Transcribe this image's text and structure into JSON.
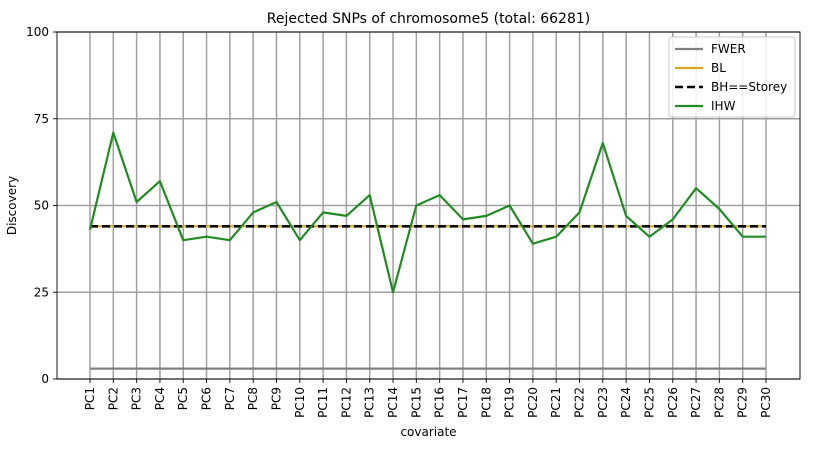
{
  "chart_data": {
    "type": "line",
    "title": "Rejected SNPs of chromosome5 (total: 66281)",
    "xlabel": "covariate",
    "ylabel": "Discovery",
    "categories": [
      "PC1",
      "PC2",
      "PC3",
      "PC4",
      "PC5",
      "PC6",
      "PC7",
      "PC8",
      "PC9",
      "PC10",
      "PC11",
      "PC12",
      "PC13",
      "PC14",
      "PC15",
      "PC16",
      "PC17",
      "PC18",
      "PC19",
      "PC20",
      "PC21",
      "PC22",
      "PC23",
      "PC24",
      "PC25",
      "PC26",
      "PC27",
      "PC28",
      "PC29",
      "PC30"
    ],
    "ylim": [
      0,
      100
    ],
    "yticks": [
      0,
      25,
      50,
      75,
      100
    ],
    "grid": true,
    "legend_position": "top-right",
    "series": [
      {
        "name": "FWER",
        "color": "#808080",
        "style": "solid",
        "values": [
          3,
          3,
          3,
          3,
          3,
          3,
          3,
          3,
          3,
          3,
          3,
          3,
          3,
          3,
          3,
          3,
          3,
          3,
          3,
          3,
          3,
          3,
          3,
          3,
          3,
          3,
          3,
          3,
          3,
          3
        ]
      },
      {
        "name": "BL",
        "color": "#daa520",
        "style": "solid",
        "values": [
          44,
          44,
          44,
          44,
          44,
          44,
          44,
          44,
          44,
          44,
          44,
          44,
          44,
          44,
          44,
          44,
          44,
          44,
          44,
          44,
          44,
          44,
          44,
          44,
          44,
          44,
          44,
          44,
          44,
          44
        ]
      },
      {
        "name": "BH==Storey",
        "color": "#000000",
        "style": "dashed",
        "values": [
          44,
          44,
          44,
          44,
          44,
          44,
          44,
          44,
          44,
          44,
          44,
          44,
          44,
          44,
          44,
          44,
          44,
          44,
          44,
          44,
          44,
          44,
          44,
          44,
          44,
          44,
          44,
          44,
          44,
          44
        ]
      },
      {
        "name": "IHW",
        "color": "#228b22",
        "style": "solid",
        "values": [
          43,
          71,
          51,
          57,
          40,
          41,
          40,
          48,
          51,
          40,
          48,
          47,
          53,
          25,
          50,
          53,
          46,
          47,
          50,
          39,
          41,
          48,
          68,
          47,
          41,
          46,
          55,
          49,
          41,
          41
        ]
      }
    ]
  }
}
